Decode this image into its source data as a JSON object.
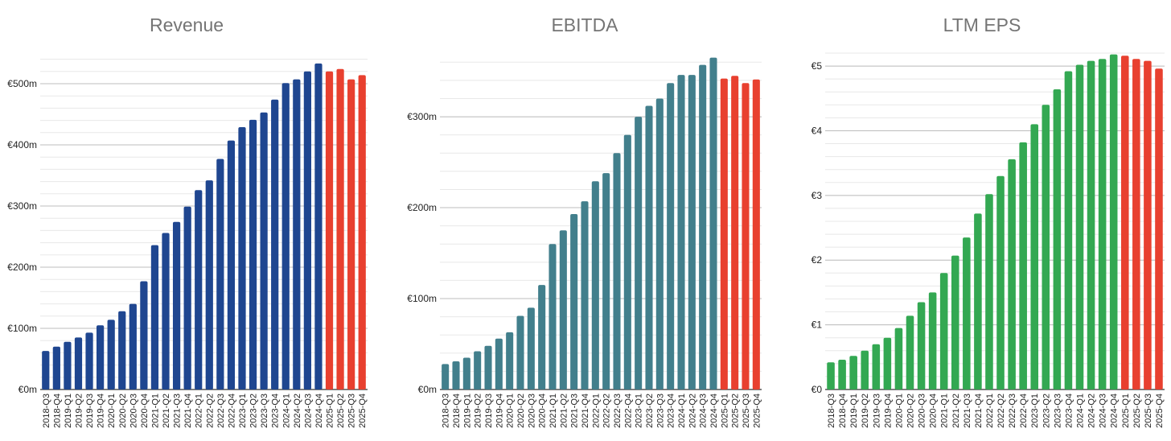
{
  "chart_data": [
    {
      "type": "bar",
      "title": "Revenue",
      "xlabel": "",
      "ylabel": "",
      "categories": [
        "2018-Q3",
        "2018-Q4",
        "2019-Q1",
        "2019-Q2",
        "2019-Q3",
        "2019-Q4",
        "2020-Q1",
        "2020-Q2",
        "2020-Q3",
        "2020-Q4",
        "2021-Q1",
        "2021-Q2",
        "2021-Q3",
        "2021-Q4",
        "2022-Q1",
        "2022-Q2",
        "2022-Q3",
        "2022-Q4",
        "2023-Q1",
        "2023-Q2",
        "2023-Q3",
        "2023-Q4",
        "2024-Q1",
        "2024-Q2",
        "2024-Q3",
        "2024-Q4",
        "2025-Q1",
        "2025-Q2",
        "2025-Q3",
        "2025-Q4"
      ],
      "values": [
        63,
        70,
        78,
        85,
        93,
        105,
        114,
        128,
        140,
        177,
        236,
        256,
        274,
        299,
        326,
        342,
        377,
        407,
        429,
        441,
        453,
        474,
        501,
        507,
        520,
        533,
        520,
        524,
        507,
        514
      ],
      "forecast_from_index": 26,
      "ylim": [
        0,
        550
      ],
      "yticks": [
        0,
        100,
        200,
        300,
        400,
        500
      ],
      "ytick_labels": [
        "€0m",
        "€100m",
        "€200m",
        "€300m",
        "€400m",
        "€500m"
      ],
      "minor_step": 20,
      "grid": true,
      "colors": {
        "actual": "#1f4690",
        "forecast": "#e8402f"
      }
    },
    {
      "type": "bar",
      "title": "EBITDA",
      "xlabel": "",
      "ylabel": "",
      "categories": [
        "2018-Q3",
        "2018-Q4",
        "2019-Q1",
        "2019-Q2",
        "2019-Q3",
        "2019-Q4",
        "2020-Q1",
        "2020-Q2",
        "2020-Q3",
        "2020-Q4",
        "2021-Q1",
        "2021-Q2",
        "2021-Q3",
        "2021-Q4",
        "2022-Q1",
        "2022-Q2",
        "2022-Q3",
        "2022-Q4",
        "2023-Q1",
        "2023-Q2",
        "2023-Q3",
        "2023-Q4",
        "2024-Q1",
        "2024-Q2",
        "2024-Q3",
        "2024-Q4",
        "2025-Q1",
        "2025-Q2",
        "2025-Q3",
        "2025-Q4"
      ],
      "values": [
        28,
        31,
        35,
        42,
        48,
        56,
        63,
        81,
        90,
        115,
        160,
        175,
        193,
        207,
        229,
        238,
        260,
        280,
        300,
        312,
        320,
        337,
        346,
        346,
        357,
        365,
        342,
        345,
        337,
        341
      ],
      "forecast_from_index": 26,
      "ylim": [
        0,
        370
      ],
      "yticks": [
        0,
        100,
        200,
        300
      ],
      "ytick_labels": [
        "€0m",
        "€100m",
        "€200m",
        "€300m"
      ],
      "minor_step": 20,
      "grid": true,
      "colors": {
        "actual": "#427f8c",
        "forecast": "#e8402f"
      }
    },
    {
      "type": "bar",
      "title": "LTM EPS",
      "xlabel": "",
      "ylabel": "",
      "categories": [
        "2018-Q3",
        "2018-Q4",
        "2019-Q1",
        "2019-Q2",
        "2019-Q3",
        "2019-Q4",
        "2020-Q1",
        "2020-Q2",
        "2020-Q3",
        "2020-Q4",
        "2021-Q1",
        "2021-Q2",
        "2021-Q3",
        "2021-Q4",
        "2022-Q1",
        "2022-Q2",
        "2022-Q3",
        "2022-Q4",
        "2023-Q1",
        "2023-Q2",
        "2023-Q3",
        "2023-Q4",
        "2024-Q1",
        "2024-Q2",
        "2024-Q3",
        "2024-Q4",
        "2025-Q1",
        "2025-Q2",
        "2025-Q3",
        "2025-Q4"
      ],
      "values": [
        0.42,
        0.46,
        0.52,
        0.6,
        0.7,
        0.8,
        0.95,
        1.14,
        1.35,
        1.5,
        1.8,
        2.07,
        2.35,
        2.72,
        3.02,
        3.3,
        3.56,
        3.82,
        4.1,
        4.4,
        4.64,
        4.92,
        5.02,
        5.08,
        5.11,
        5.18,
        5.16,
        5.11,
        5.08,
        4.96
      ],
      "forecast_from_index": 26,
      "ylim": [
        0,
        5.2
      ],
      "yticks": [
        0,
        1,
        2,
        3,
        4,
        5
      ],
      "ytick_labels": [
        "€0",
        "€1",
        "€2",
        "€3",
        "€4",
        "€5"
      ],
      "minor_step": 0.2,
      "grid": true,
      "colors": {
        "actual": "#33a852",
        "forecast": "#e8402f"
      }
    }
  ]
}
